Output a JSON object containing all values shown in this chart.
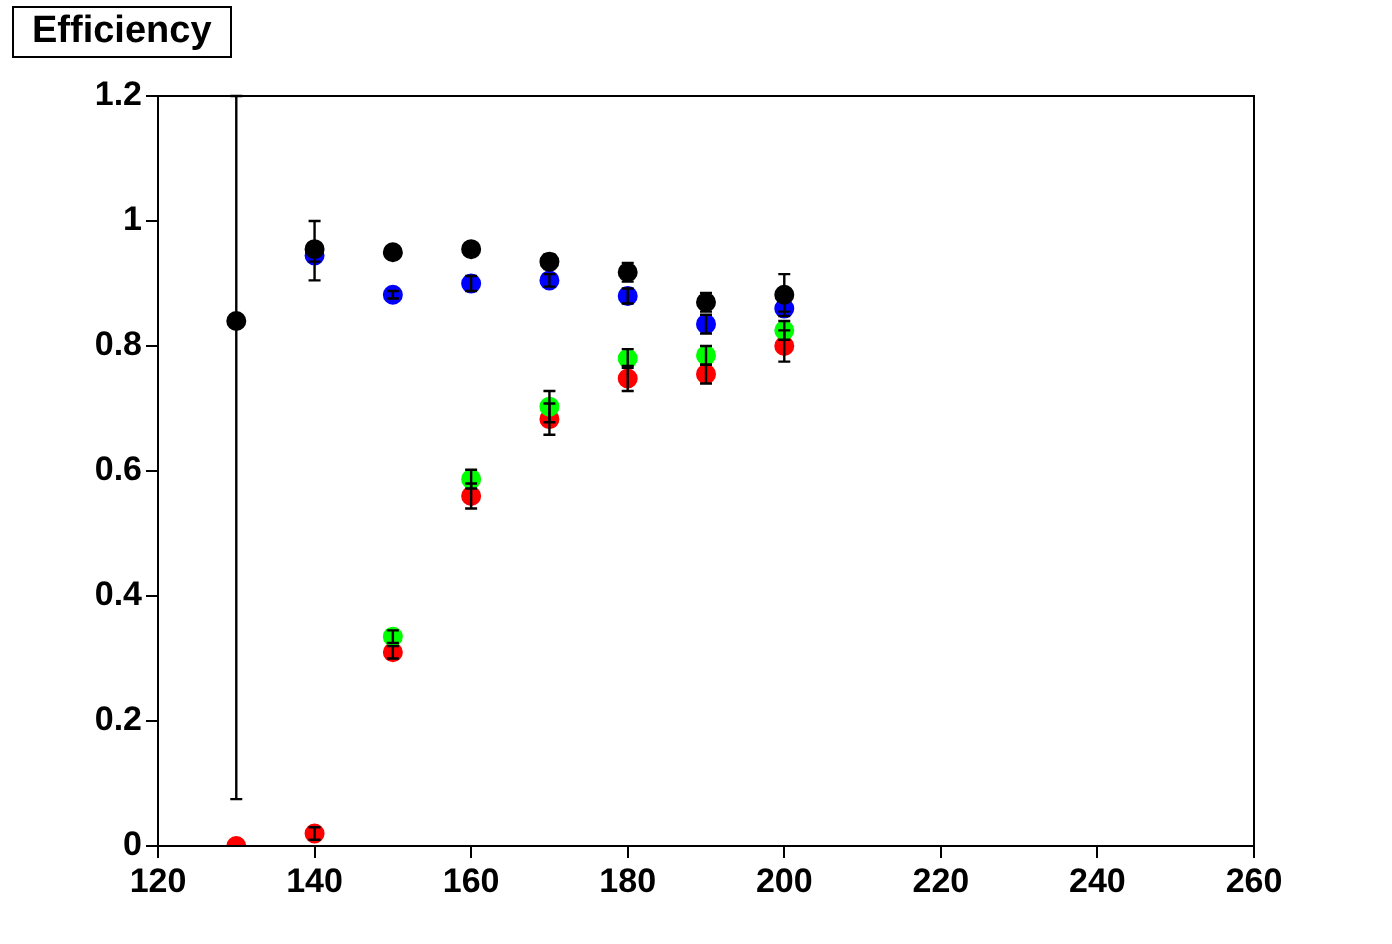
{
  "chart_data": {
    "type": "scatter",
    "title": "Efficiency",
    "marker": "circle",
    "grid": false,
    "legend": false,
    "x": [
      130,
      140,
      150,
      160,
      170,
      180,
      190,
      200
    ],
    "xlim": [
      120,
      260
    ],
    "xticks": [
      120,
      140,
      160,
      180,
      200,
      220,
      240,
      260
    ],
    "ylim": [
      0,
      1.2
    ],
    "yticks": [
      0,
      0.2,
      0.4,
      0.6,
      0.8,
      1,
      1.2
    ],
    "series": [
      {
        "color": "#000000",
        "values": [
          0.84,
          0.955,
          0.95,
          0.955,
          0.935,
          0.918,
          0.87,
          0.882
        ],
        "errors": [
          [
            0.075,
            1.2
          ],
          [
            0.905,
            1.0
          ],
          null,
          null,
          0.012,
          0.015,
          0.015,
          [
            0.855,
            0.915
          ]
        ]
      },
      {
        "color": "#0000ff",
        "values": [
          null,
          0.945,
          0.882,
          0.9,
          0.905,
          0.88,
          0.835,
          0.86
        ],
        "errors": [
          null,
          0.01,
          0.006,
          0.012,
          0.01,
          0.012,
          0.015,
          0.012
        ]
      },
      {
        "color": "#00ff00",
        "values": [
          null,
          null,
          0.335,
          0.587,
          0.703,
          0.78,
          0.785,
          0.825
        ],
        "errors": [
          null,
          null,
          0.01,
          0.015,
          0.025,
          0.015,
          0.015,
          0.015
        ]
      },
      {
        "color": "#ff0000",
        "values": [
          0,
          0.02,
          0.31,
          0.56,
          0.683,
          0.748,
          0.755,
          0.8
        ],
        "errors": [
          null,
          0.01,
          0.01,
          0.02,
          0.025,
          0.02,
          0.015,
          0.025
        ]
      }
    ]
  }
}
